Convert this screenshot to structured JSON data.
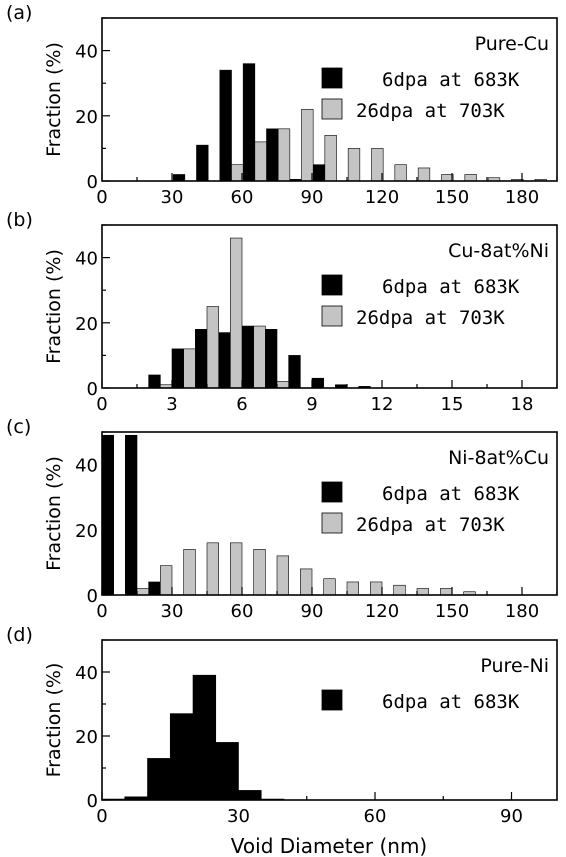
{
  "chart_data": [
    {
      "panel_label": "(a)",
      "type": "bar",
      "material": "Pure-Cu",
      "ylabel": "Fraction (%)",
      "xlabel": "",
      "xlim": [
        0,
        195
      ],
      "ylim": [
        0,
        50
      ],
      "xticks": [
        0,
        30,
        60,
        90,
        120,
        150,
        180
      ],
      "yticks": [
        0,
        20,
        40
      ],
      "bar_width": 5,
      "series": [
        {
          "name": "6dpa at 683K",
          "color": "#000000",
          "x": [
            33,
            43,
            53,
            63,
            73,
            83,
            93
          ],
          "values": [
            2,
            11,
            34,
            36,
            16,
            0.5,
            5
          ]
        },
        {
          "name": "26dpa at 703K",
          "color": "#c4c4c4",
          "x": [
            58,
            68,
            78,
            88,
            98,
            108,
            118,
            128,
            138,
            148,
            158,
            168,
            178,
            188
          ],
          "values": [
            5,
            12,
            16,
            22,
            14,
            10,
            10,
            5,
            4,
            2,
            2,
            1,
            0.5,
            0.5
          ]
        }
      ]
    },
    {
      "panel_label": "(b)",
      "type": "bar",
      "material": "Cu-8at%Ni",
      "ylabel": "Fraction (%)",
      "xlabel": "",
      "xlim": [
        0,
        19.5
      ],
      "ylim": [
        0,
        50
      ],
      "xticks": [
        0,
        3,
        6,
        9,
        12,
        15,
        18
      ],
      "yticks": [
        0,
        20,
        40
      ],
      "bar_width": 0.5,
      "series": [
        {
          "name": "6dpa at 683K",
          "color": "#000000",
          "x": [
            2.25,
            3.25,
            4.25,
            5.25,
            6.25,
            7.25,
            8.25,
            9.25,
            10.25,
            11.25
          ],
          "values": [
            4,
            12,
            18,
            17,
            19,
            18,
            10,
            3,
            1,
            0.5
          ]
        },
        {
          "name": "26dpa at 703K",
          "color": "#c4c4c4",
          "x": [
            2.75,
            3.75,
            4.75,
            5.75,
            6.75,
            7.75
          ],
          "values": [
            1,
            12,
            25,
            46,
            19,
            2
          ]
        }
      ]
    },
    {
      "panel_label": "(c)",
      "type": "bar",
      "material": "Ni-8at%Cu",
      "ylabel": "Fraction (%)",
      "xlabel": "",
      "xlim": [
        0,
        195
      ],
      "ylim": [
        0,
        50
      ],
      "xticks": [
        0,
        30,
        60,
        90,
        120,
        150,
        180
      ],
      "yticks": [
        0,
        20,
        40
      ],
      "bar_width": 5,
      "series": [
        {
          "name": "6dpa at 683K",
          "color": "#000000",
          "x": [
            2.5,
            12.5,
            22.5
          ],
          "values": [
            49,
            49,
            4
          ]
        },
        {
          "name": "26dpa at 703K",
          "color": "#c4c4c4",
          "x": [
            17.5,
            27.5,
            37.5,
            47.5,
            57.5,
            67.5,
            77.5,
            87.5,
            97.5,
            107.5,
            117.5,
            127.5,
            137.5,
            147.5,
            157.5
          ],
          "values": [
            2,
            9,
            14,
            16,
            16,
            14,
            12,
            8,
            5,
            4,
            4,
            3,
            2,
            2,
            1
          ]
        }
      ]
    },
    {
      "panel_label": "(d)",
      "type": "bar",
      "material": "Pure-Ni",
      "ylabel": "Fraction (%)",
      "xlabel": "Void Diameter (nm)",
      "xlim": [
        0,
        100
      ],
      "ylim": [
        0,
        50
      ],
      "xticks": [
        0,
        30,
        60,
        90
      ],
      "yticks": [
        0,
        20,
        40
      ],
      "bar_width": 5,
      "series": [
        {
          "name": "6dpa at 683K",
          "color": "#000000",
          "x": [
            2.5,
            7.5,
            12.5,
            17.5,
            22.5,
            27.5,
            32.5,
            37.5
          ],
          "values": [
            0.3,
            1,
            13,
            27,
            39,
            18,
            3,
            0.3
          ]
        }
      ]
    }
  ]
}
